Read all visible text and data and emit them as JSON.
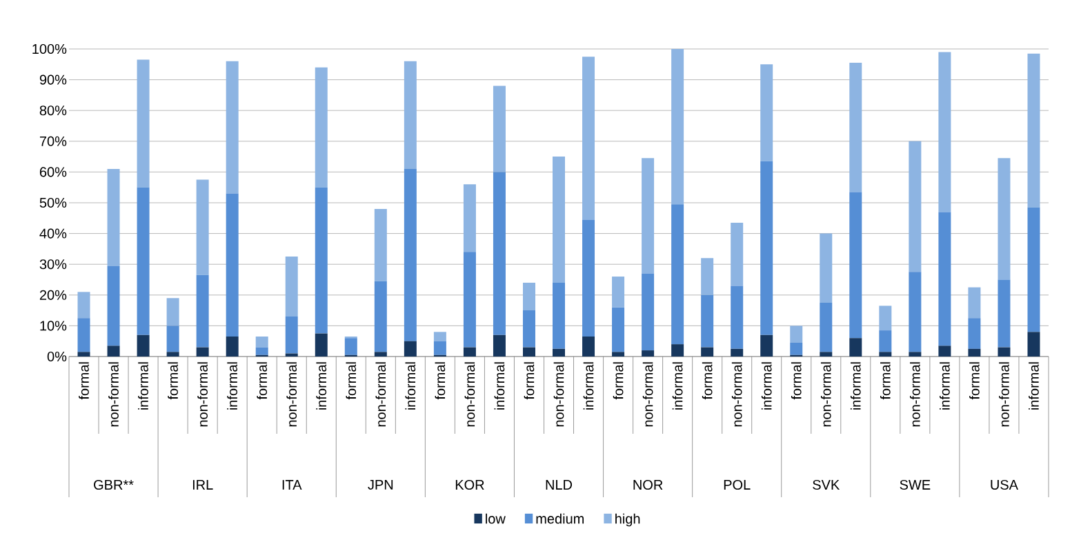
{
  "chart_data": {
    "type": "bar",
    "stacked": true,
    "categories": [
      "formal",
      "non-formal",
      "informal",
      "formal",
      "non-formal",
      "informal",
      "formal",
      "non-formal",
      "informal",
      "formal",
      "non-formal",
      "informal",
      "formal",
      "non-formal",
      "informal",
      "formal",
      "non-formal",
      "informal",
      "formal",
      "non-formal",
      "informal",
      "formal",
      "non-formal",
      "informal",
      "formal",
      "non-formal",
      "informal",
      "formal",
      "non-formal",
      "informal",
      "formal",
      "non-formal",
      "informal"
    ],
    "annotations": [
      "GBR**",
      "IRL",
      "ITA",
      "JPN",
      "KOR",
      "NLD",
      "NOR",
      "POL",
      "SVK",
      "SWE",
      "USA"
    ],
    "series": [
      {
        "name": "low",
        "color": "#17375e",
        "values": [
          1.5,
          3.5,
          7,
          1.5,
          3,
          6.5,
          0.5,
          1,
          7.5,
          0.5,
          1.5,
          5,
          0.5,
          3,
          7,
          3,
          2.5,
          6.5,
          1.5,
          2,
          4,
          3,
          2.5,
          7,
          0.5,
          1.5,
          6,
          1.5,
          1.5,
          3.5,
          2.5,
          3,
          8
        ]
      },
      {
        "name": "medium",
        "color": "#558ed5",
        "values": [
          11,
          26,
          48,
          8.5,
          23.5,
          46.5,
          2.5,
          12,
          47.5,
          5.5,
          23,
          56,
          4.5,
          31,
          53,
          12,
          21.5,
          38,
          14.5,
          25,
          45.5,
          17,
          20.5,
          56.5,
          4,
          16,
          47.5,
          7,
          26,
          43.5,
          10,
          22,
          40.5
        ]
      },
      {
        "name": "high",
        "color": "#8db4e2",
        "values": [
          8.5,
          31.5,
          41.5,
          9,
          31,
          43,
          3.5,
          19.5,
          39,
          0.5,
          23.5,
          35,
          3,
          22,
          28,
          9,
          41,
          53,
          10,
          37.5,
          50.5,
          12,
          20.5,
          31.5,
          5.5,
          22.5,
          42,
          8,
          42.5,
          52,
          10,
          39.5,
          50
        ]
      }
    ],
    "ylim": [
      0,
      100
    ],
    "yticks": [
      {
        "value": 0,
        "label": "0%"
      },
      {
        "value": 10,
        "label": "10%"
      },
      {
        "value": 20,
        "label": "20%"
      },
      {
        "value": 30,
        "label": "30%"
      },
      {
        "value": 40,
        "label": "40%"
      },
      {
        "value": 50,
        "label": "50%"
      },
      {
        "value": 60,
        "label": "60%"
      },
      {
        "value": 70,
        "label": "70%"
      },
      {
        "value": 80,
        "label": "80%"
      },
      {
        "value": 90,
        "label": "90%"
      },
      {
        "value": 100,
        "label": "100%"
      }
    ],
    "grid": "y",
    "legend": "bottom"
  }
}
